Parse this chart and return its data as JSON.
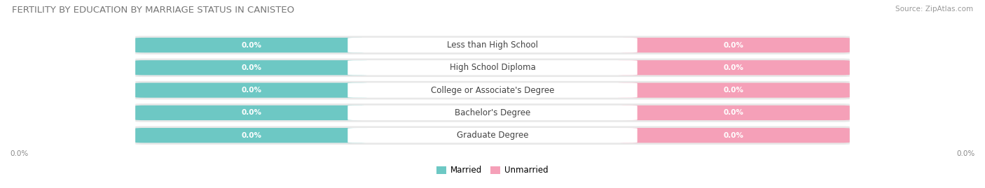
{
  "title": "FERTILITY BY EDUCATION BY MARRIAGE STATUS IN CANISTEO",
  "source": "Source: ZipAtlas.com",
  "categories": [
    "Less than High School",
    "High School Diploma",
    "College or Associate's Degree",
    "Bachelor's Degree",
    "Graduate Degree"
  ],
  "married_values": [
    0.0,
    0.0,
    0.0,
    0.0,
    0.0
  ],
  "unmarried_values": [
    0.0,
    0.0,
    0.0,
    0.0,
    0.0
  ],
  "married_color": "#6dc8c4",
  "unmarried_color": "#f5a0b8",
  "row_bg_color": "#e8e8e8",
  "label_color": "#ffffff",
  "title_fontsize": 9.5,
  "source_fontsize": 7.5,
  "label_fontsize": 7.5,
  "category_fontsize": 8.5,
  "legend_married": "Married",
  "legend_unmarried": "Unmarried",
  "background_color": "#ffffff"
}
